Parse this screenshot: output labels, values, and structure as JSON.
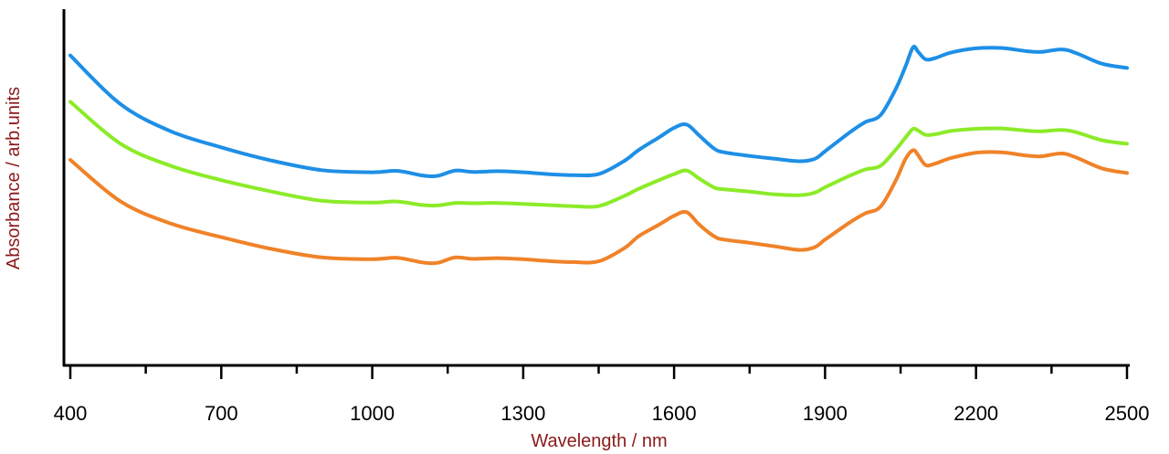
{
  "chart_data": {
    "type": "line",
    "title": "",
    "xlabel": "Wavelength / nm",
    "ylabel": "Absorbance / arb.units",
    "xlim": [
      400,
      2500
    ],
    "ylim": [
      0,
      1
    ],
    "xticks": [
      400,
      700,
      1000,
      1300,
      1600,
      1900,
      2200,
      2500
    ],
    "minor_tick_step": 150,
    "y_tick_labels": false,
    "grid": false,
    "legend": "none",
    "label_color": "#8b1a1a",
    "series": [
      {
        "color": "#1e8fe6",
        "points": [
          [
            400,
            0.87
          ],
          [
            500,
            0.733
          ],
          [
            600,
            0.657
          ],
          [
            700,
            0.612
          ],
          [
            800,
            0.575
          ],
          [
            900,
            0.548
          ],
          [
            1000,
            0.542
          ],
          [
            1050,
            0.546
          ],
          [
            1100,
            0.533
          ],
          [
            1130,
            0.532
          ],
          [
            1165,
            0.547
          ],
          [
            1200,
            0.543
          ],
          [
            1250,
            0.545
          ],
          [
            1300,
            0.542
          ],
          [
            1350,
            0.537
          ],
          [
            1400,
            0.534
          ],
          [
            1450,
            0.537
          ],
          [
            1500,
            0.573
          ],
          [
            1530,
            0.605
          ],
          [
            1570,
            0.64
          ],
          [
            1600,
            0.667
          ],
          [
            1625,
            0.676
          ],
          [
            1650,
            0.645
          ],
          [
            1680,
            0.608
          ],
          [
            1700,
            0.598
          ],
          [
            1750,
            0.588
          ],
          [
            1800,
            0.58
          ],
          [
            1850,
            0.573
          ],
          [
            1880,
            0.58
          ],
          [
            1900,
            0.601
          ],
          [
            1950,
            0.655
          ],
          [
            1980,
            0.683
          ],
          [
            2010,
            0.702
          ],
          [
            2040,
            0.775
          ],
          [
            2060,
            0.84
          ],
          [
            2075,
            0.893
          ],
          [
            2085,
            0.88
          ],
          [
            2100,
            0.859
          ],
          [
            2120,
            0.863
          ],
          [
            2150,
            0.878
          ],
          [
            2200,
            0.89
          ],
          [
            2250,
            0.891
          ],
          [
            2300,
            0.882
          ],
          [
            2330,
            0.88
          ],
          [
            2370,
            0.887
          ],
          [
            2400,
            0.876
          ],
          [
            2450,
            0.847
          ],
          [
            2500,
            0.835
          ]
        ]
      },
      {
        "color": "#8ceb28",
        "points": [
          [
            400,
            0.74
          ],
          [
            500,
            0.622
          ],
          [
            600,
            0.56
          ],
          [
            700,
            0.52
          ],
          [
            800,
            0.488
          ],
          [
            900,
            0.462
          ],
          [
            1000,
            0.457
          ],
          [
            1050,
            0.46
          ],
          [
            1100,
            0.45
          ],
          [
            1130,
            0.449
          ],
          [
            1165,
            0.456
          ],
          [
            1200,
            0.455
          ],
          [
            1250,
            0.456
          ],
          [
            1300,
            0.453
          ],
          [
            1350,
            0.45
          ],
          [
            1400,
            0.447
          ],
          [
            1450,
            0.447
          ],
          [
            1500,
            0.475
          ],
          [
            1530,
            0.496
          ],
          [
            1570,
            0.52
          ],
          [
            1600,
            0.537
          ],
          [
            1625,
            0.547
          ],
          [
            1650,
            0.524
          ],
          [
            1680,
            0.499
          ],
          [
            1700,
            0.494
          ],
          [
            1750,
            0.488
          ],
          [
            1800,
            0.48
          ],
          [
            1850,
            0.478
          ],
          [
            1880,
            0.485
          ],
          [
            1900,
            0.5
          ],
          [
            1950,
            0.533
          ],
          [
            1980,
            0.55
          ],
          [
            2010,
            0.56
          ],
          [
            2040,
            0.605
          ],
          [
            2060,
            0.64
          ],
          [
            2075,
            0.664
          ],
          [
            2085,
            0.659
          ],
          [
            2100,
            0.647
          ],
          [
            2120,
            0.649
          ],
          [
            2150,
            0.658
          ],
          [
            2200,
            0.664
          ],
          [
            2250,
            0.665
          ],
          [
            2300,
            0.659
          ],
          [
            2330,
            0.657
          ],
          [
            2370,
            0.661
          ],
          [
            2400,
            0.654
          ],
          [
            2450,
            0.632
          ],
          [
            2500,
            0.622
          ]
        ]
      },
      {
        "color": "#f08228",
        "points": [
          [
            400,
            0.577
          ],
          [
            500,
            0.46
          ],
          [
            600,
            0.398
          ],
          [
            700,
            0.36
          ],
          [
            800,
            0.327
          ],
          [
            900,
            0.303
          ],
          [
            1000,
            0.298
          ],
          [
            1050,
            0.302
          ],
          [
            1100,
            0.289
          ],
          [
            1130,
            0.288
          ],
          [
            1165,
            0.303
          ],
          [
            1200,
            0.299
          ],
          [
            1250,
            0.301
          ],
          [
            1300,
            0.298
          ],
          [
            1350,
            0.293
          ],
          [
            1400,
            0.29
          ],
          [
            1450,
            0.292
          ],
          [
            1500,
            0.328
          ],
          [
            1530,
            0.363
          ],
          [
            1570,
            0.395
          ],
          [
            1600,
            0.42
          ],
          [
            1625,
            0.43
          ],
          [
            1650,
            0.395
          ],
          [
            1680,
            0.362
          ],
          [
            1700,
            0.353
          ],
          [
            1750,
            0.344
          ],
          [
            1800,
            0.334
          ],
          [
            1850,
            0.324
          ],
          [
            1880,
            0.332
          ],
          [
            1900,
            0.353
          ],
          [
            1950,
            0.402
          ],
          [
            1980,
            0.427
          ],
          [
            2010,
            0.445
          ],
          [
            2040,
            0.518
          ],
          [
            2060,
            0.58
          ],
          [
            2075,
            0.604
          ],
          [
            2085,
            0.59
          ],
          [
            2100,
            0.562
          ],
          [
            2120,
            0.567
          ],
          [
            2150,
            0.582
          ],
          [
            2200,
            0.597
          ],
          [
            2250,
            0.598
          ],
          [
            2300,
            0.589
          ],
          [
            2330,
            0.587
          ],
          [
            2370,
            0.595
          ],
          [
            2400,
            0.583
          ],
          [
            2450,
            0.553
          ],
          [
            2500,
            0.54
          ]
        ]
      }
    ]
  }
}
